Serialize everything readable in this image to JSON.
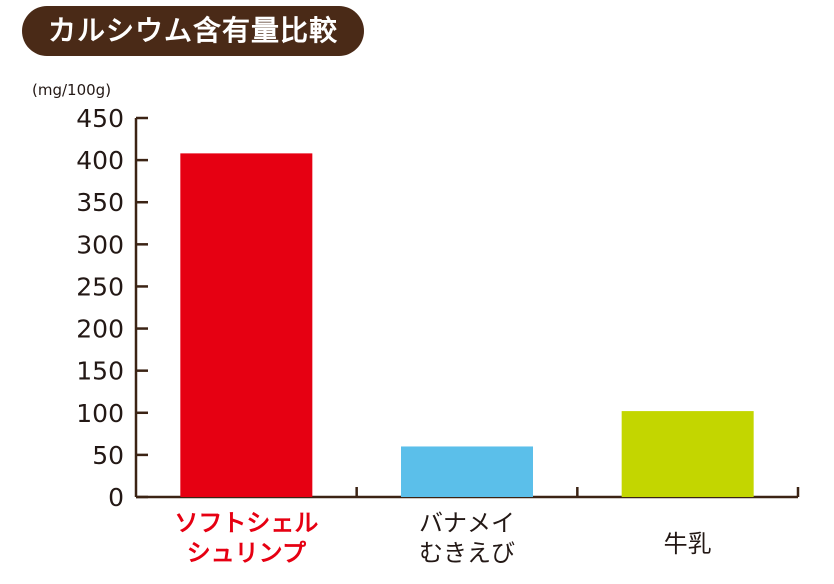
{
  "title": "カルシウム含有量比較",
  "chart_data": {
    "type": "bar",
    "title": "カルシウム含有量比較",
    "unit_label": "(mg/100g)",
    "ylabel": "",
    "xlabel": "",
    "ylim": [
      0,
      450
    ],
    "yticks": [
      0,
      50,
      100,
      150,
      200,
      250,
      300,
      350,
      400,
      450
    ],
    "grid": false,
    "categories": [
      {
        "lines": [
          "ソフトシェル",
          "シュリンプ"
        ],
        "highlight": true
      },
      {
        "lines": [
          "バナメイ",
          "むきえび"
        ],
        "highlight": false
      },
      {
        "lines": [
          "牛乳"
        ],
        "highlight": false
      }
    ],
    "values": [
      408,
      60,
      102
    ],
    "colors": [
      "#e60012",
      "#5bbfea",
      "#c3d600"
    ],
    "axis_color": "#3b2314",
    "highlight_label_color": "#e60012",
    "label_color": "#231815"
  }
}
